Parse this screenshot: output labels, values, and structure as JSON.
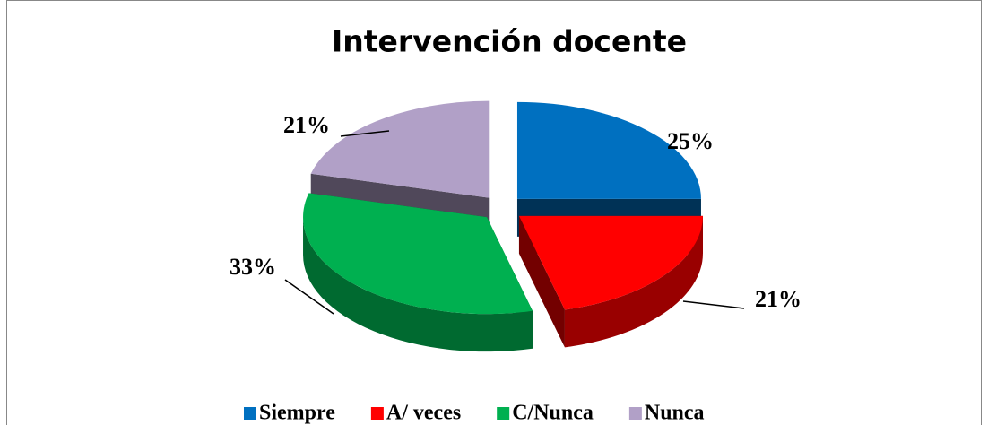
{
  "chart_data": {
    "type": "pie3d",
    "title": "Intervención docente",
    "categories": [
      "Siempre",
      "A/ veces",
      "C/Nunca",
      "Nunca"
    ],
    "values": [
      25,
      21,
      33,
      21
    ],
    "value_labels": [
      "25%",
      "21%",
      "33%",
      "21%"
    ],
    "colors": [
      "#0070c0",
      "#ff0000",
      "#00b050",
      "#b1a0c7"
    ],
    "legend": "bottom"
  }
}
